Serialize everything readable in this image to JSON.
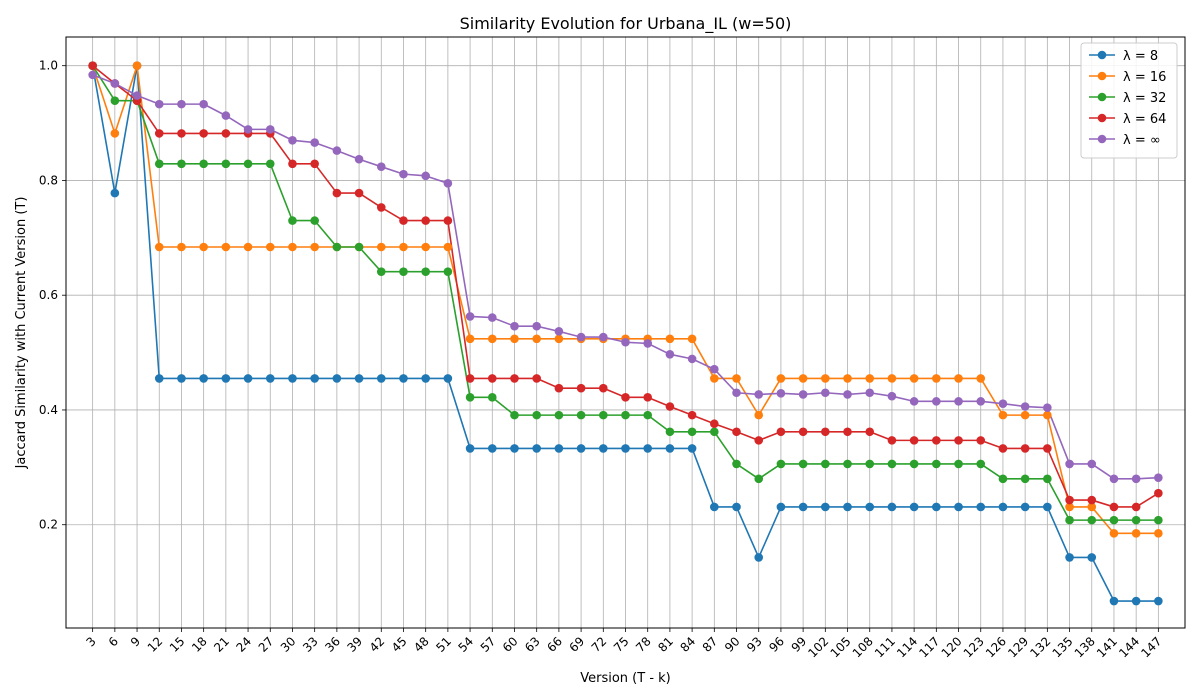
{
  "chart_data": {
    "type": "line",
    "title": "Similarity Evolution for Urbana_IL (w=50)",
    "xlabel": "Version (T - k)",
    "ylabel": "Jaccard Similarity with Current Version (T)",
    "x": [
      3,
      6,
      9,
      12,
      15,
      18,
      21,
      24,
      27,
      30,
      33,
      36,
      39,
      42,
      45,
      48,
      51,
      54,
      57,
      60,
      63,
      66,
      69,
      72,
      75,
      78,
      81,
      84,
      87,
      90,
      93,
      96,
      99,
      102,
      105,
      108,
      111,
      114,
      117,
      120,
      123,
      126,
      129,
      132,
      135,
      138,
      141,
      144,
      147
    ],
    "xticks": [
      "3",
      "6",
      "9",
      "12",
      "15",
      "18",
      "21",
      "24",
      "27",
      "30",
      "33",
      "36",
      "39",
      "42",
      "45",
      "48",
      "51",
      "54",
      "57",
      "60",
      "63",
      "66",
      "69",
      "72",
      "75",
      "78",
      "81",
      "84",
      "87",
      "90",
      "93",
      "96",
      "99",
      "102",
      "105",
      "108",
      "111",
      "114",
      "117",
      "120",
      "123",
      "126",
      "129",
      "132",
      "135",
      "138",
      "141",
      "144",
      "147"
    ],
    "yticks": [
      "0.2",
      "0.4",
      "0.6",
      "0.8",
      "1.0"
    ],
    "ytick_values": [
      0.2,
      0.4,
      0.6,
      0.8,
      1.0
    ],
    "ylim": [
      0.02,
      1.05
    ],
    "grid": true,
    "legend_position": "top-right",
    "series": [
      {
        "name": "λ = 8",
        "color": "#1f77b4",
        "values": [
          1.0,
          0.778,
          1.0,
          0.455,
          0.455,
          0.455,
          0.455,
          0.455,
          0.455,
          0.455,
          0.455,
          0.455,
          0.455,
          0.455,
          0.455,
          0.455,
          0.455,
          0.333,
          0.333,
          0.333,
          0.333,
          0.333,
          0.333,
          0.333,
          0.333,
          0.333,
          0.333,
          0.333,
          0.231,
          0.231,
          0.143,
          0.231,
          0.231,
          0.231,
          0.231,
          0.231,
          0.231,
          0.231,
          0.231,
          0.231,
          0.231,
          0.231,
          0.231,
          0.231,
          0.143,
          0.143,
          0.067,
          0.067,
          0.067
        ]
      },
      {
        "name": "λ = 16",
        "color": "#ff7f0e",
        "values": [
          1.0,
          0.882,
          1.0,
          0.684,
          0.684,
          0.684,
          0.684,
          0.684,
          0.684,
          0.684,
          0.684,
          0.684,
          0.684,
          0.684,
          0.684,
          0.684,
          0.684,
          0.524,
          0.524,
          0.524,
          0.524,
          0.524,
          0.524,
          0.524,
          0.524,
          0.524,
          0.524,
          0.524,
          0.455,
          0.455,
          0.391,
          0.455,
          0.455,
          0.455,
          0.455,
          0.455,
          0.455,
          0.455,
          0.455,
          0.455,
          0.455,
          0.391,
          0.391,
          0.391,
          0.231,
          0.231,
          0.185,
          0.185,
          0.185
        ]
      },
      {
        "name": "λ = 32",
        "color": "#2ca02c",
        "values": [
          1.0,
          0.939,
          0.939,
          0.829,
          0.829,
          0.829,
          0.829,
          0.829,
          0.829,
          0.73,
          0.73,
          0.684,
          0.684,
          0.641,
          0.641,
          0.641,
          0.641,
          0.422,
          0.422,
          0.391,
          0.391,
          0.391,
          0.391,
          0.391,
          0.391,
          0.391,
          0.362,
          0.362,
          0.362,
          0.306,
          0.28,
          0.306,
          0.306,
          0.306,
          0.306,
          0.306,
          0.306,
          0.306,
          0.306,
          0.306,
          0.306,
          0.28,
          0.28,
          0.28,
          0.208,
          0.208,
          0.208,
          0.208,
          0.208
        ]
      },
      {
        "name": "λ = 64",
        "color": "#d62728",
        "values": [
          1.0,
          0.969,
          0.939,
          0.882,
          0.882,
          0.882,
          0.882,
          0.882,
          0.882,
          0.829,
          0.829,
          0.778,
          0.778,
          0.753,
          0.73,
          0.73,
          0.73,
          0.455,
          0.455,
          0.455,
          0.455,
          0.438,
          0.438,
          0.438,
          0.422,
          0.422,
          0.406,
          0.391,
          0.376,
          0.362,
          0.347,
          0.362,
          0.362,
          0.362,
          0.362,
          0.362,
          0.347,
          0.347,
          0.347,
          0.347,
          0.347,
          0.333,
          0.333,
          0.333,
          0.243,
          0.243,
          0.231,
          0.231,
          0.255
        ]
      },
      {
        "name": "λ = ∞",
        "color": "#9467bd",
        "values": [
          0.984,
          0.969,
          0.948,
          0.933,
          0.933,
          0.933,
          0.913,
          0.889,
          0.889,
          0.87,
          0.866,
          0.852,
          0.837,
          0.824,
          0.811,
          0.808,
          0.795,
          0.563,
          0.561,
          0.546,
          0.546,
          0.537,
          0.527,
          0.527,
          0.518,
          0.516,
          0.497,
          0.489,
          0.471,
          0.43,
          0.427,
          0.429,
          0.427,
          0.43,
          0.427,
          0.43,
          0.424,
          0.415,
          0.415,
          0.415,
          0.415,
          0.411,
          0.406,
          0.404,
          0.306,
          0.306,
          0.28,
          0.28,
          0.282
        ]
      }
    ]
  }
}
